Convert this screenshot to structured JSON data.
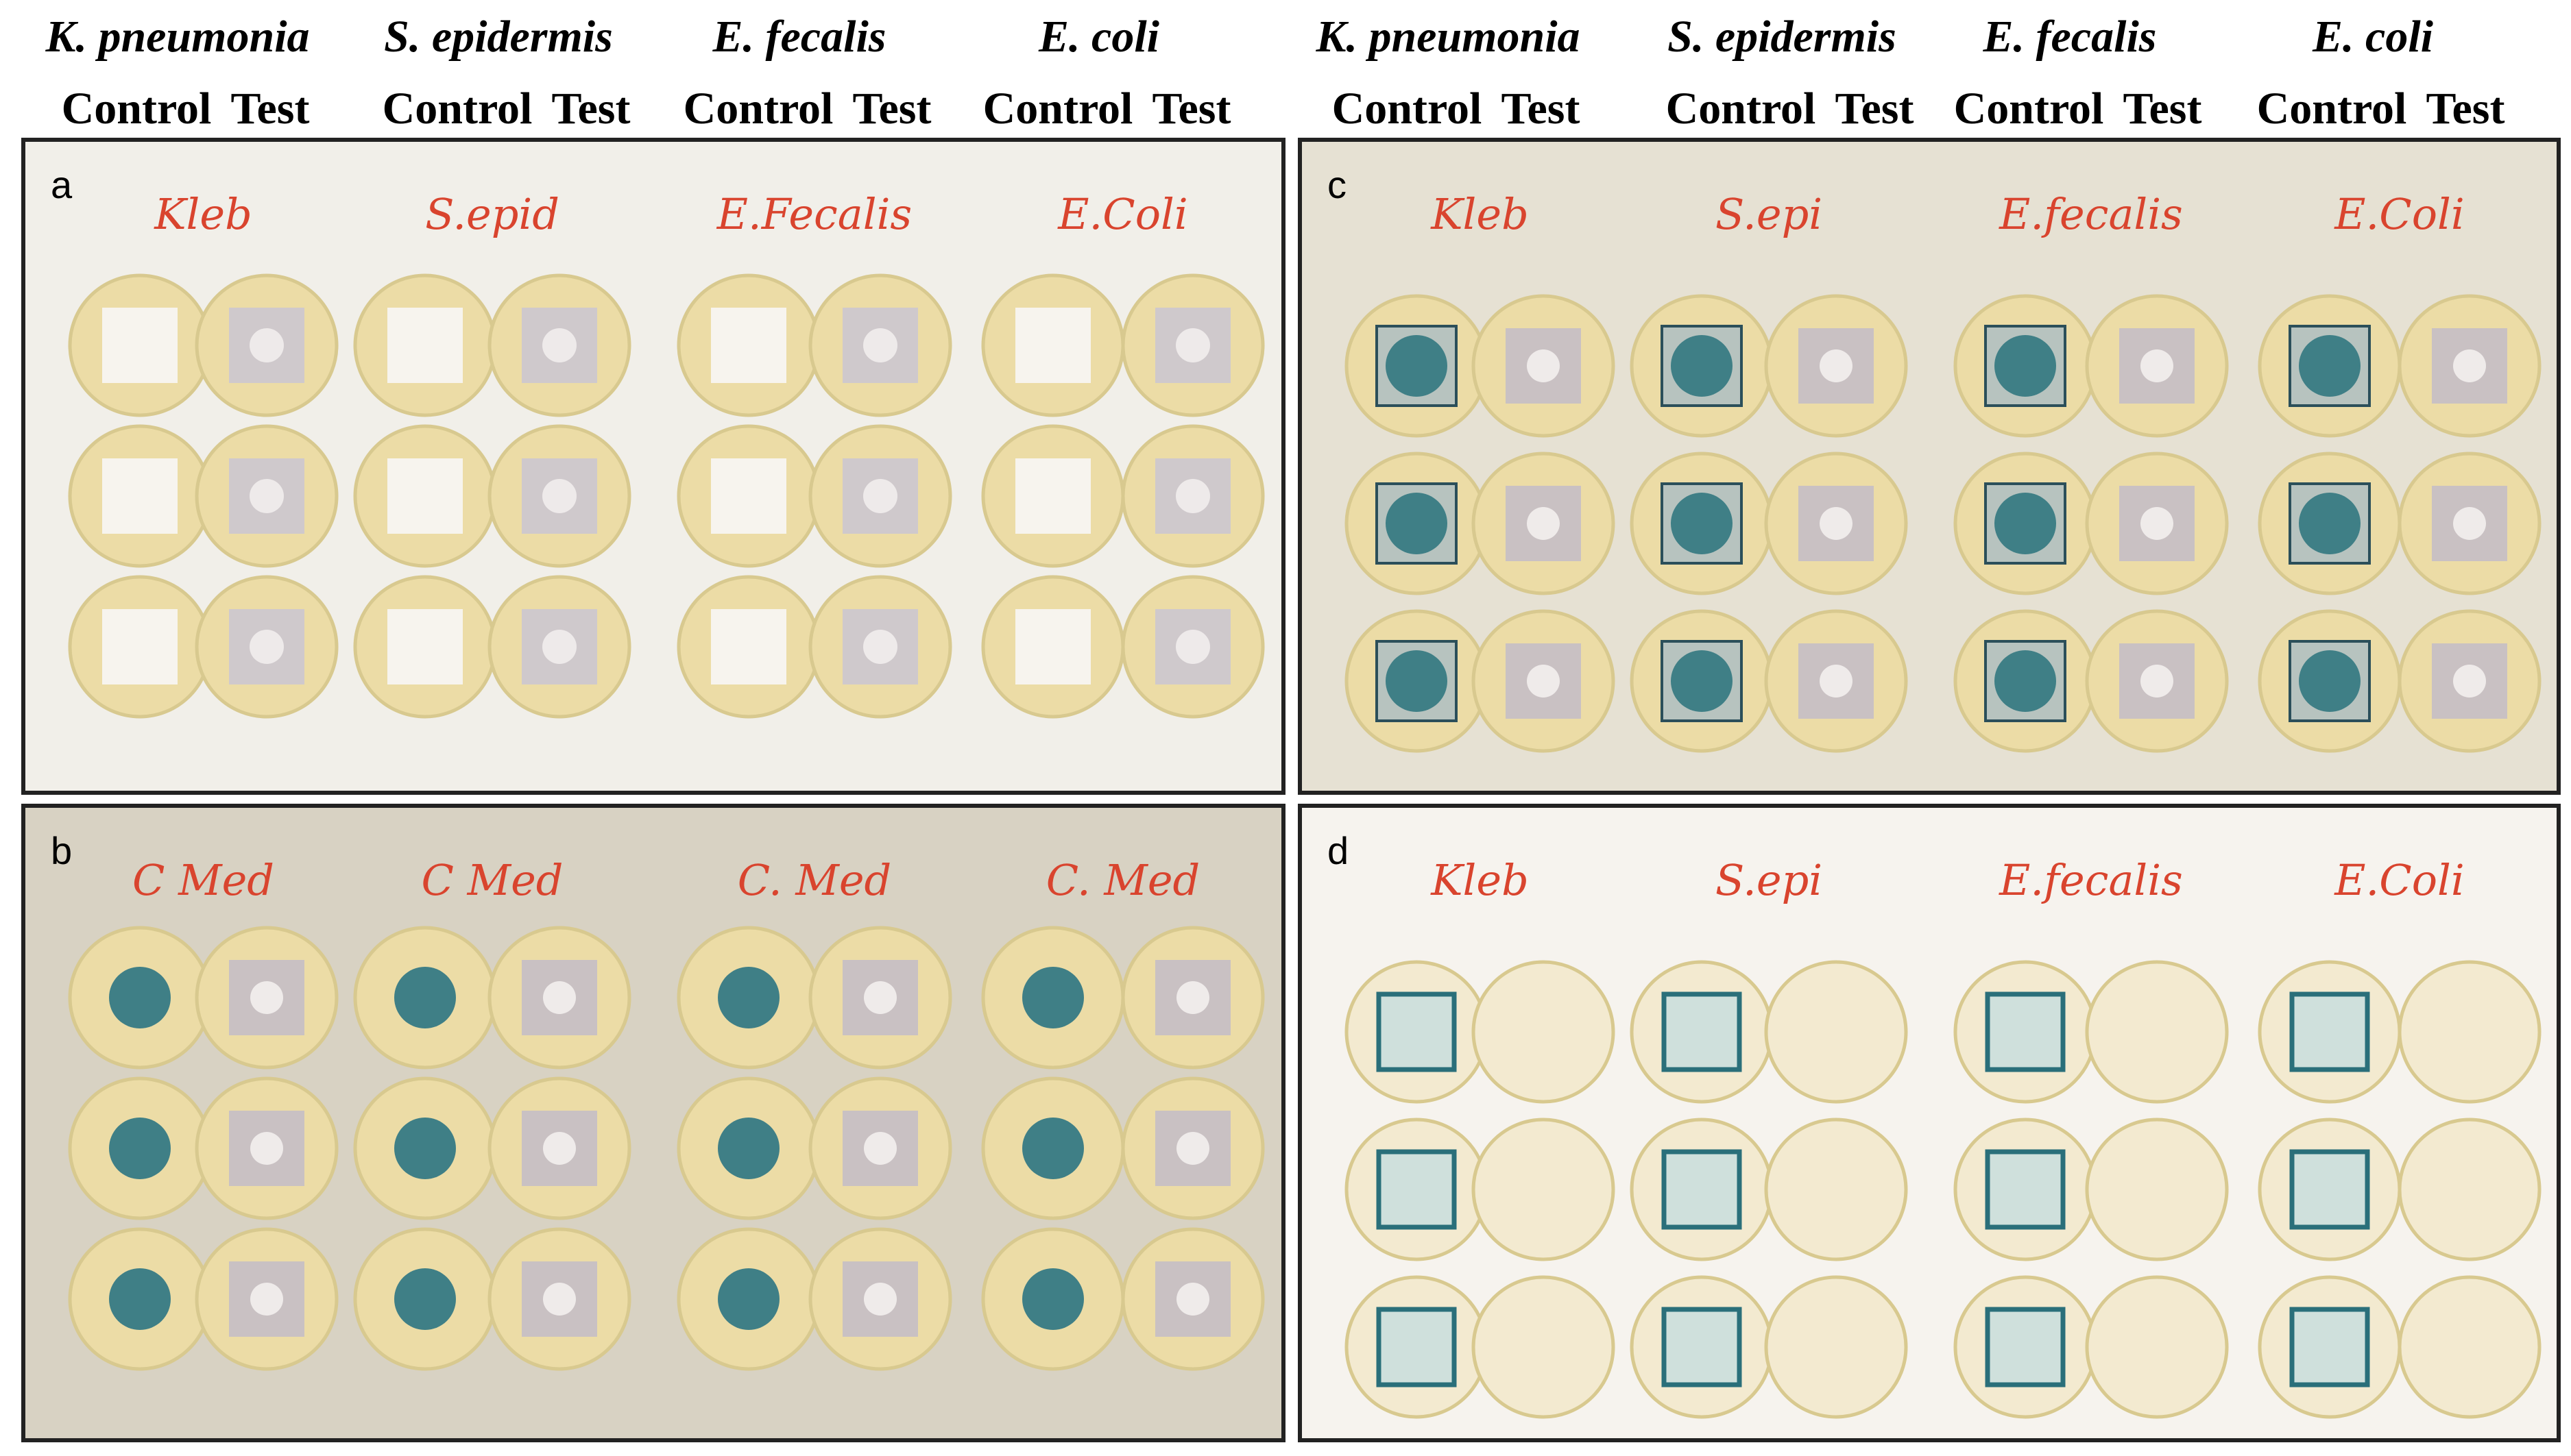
{
  "header": {
    "groups": [
      {
        "species": "K. pneumonia",
        "control": "Control",
        "test": "Test"
      },
      {
        "species": "S. epidermis",
        "control": "Control",
        "test": "Test"
      },
      {
        "species": "E. fecalis",
        "control": "Control",
        "test": "Test"
      },
      {
        "species": "E. coli",
        "control": "Control",
        "test": "Test"
      },
      {
        "species": "K. pneumonia",
        "control": "Control",
        "test": "Test"
      },
      {
        "species": "S. epidermis",
        "control": "Control",
        "test": "Test"
      },
      {
        "species": "E. fecalis",
        "control": "Control",
        "test": "Test"
      },
      {
        "species": "E. coli",
        "control": "Control",
        "test": "Test"
      }
    ]
  },
  "panels": [
    {
      "letter": "a",
      "labels": [
        "Kleb",
        "S.epid",
        "E.Fecalis",
        "E.Coli"
      ]
    },
    {
      "letter": "b",
      "labels": [
        "C Med",
        "C Med",
        "C. Med",
        "C. Med"
      ]
    },
    {
      "letter": "c",
      "labels": [
        "Kleb",
        "S.epi",
        "E.fecalis",
        "E.Coli"
      ]
    },
    {
      "letter": "d",
      "labels": [
        "Kleb",
        "S.epi",
        "E.fecalis",
        "E.Coli"
      ]
    }
  ]
}
